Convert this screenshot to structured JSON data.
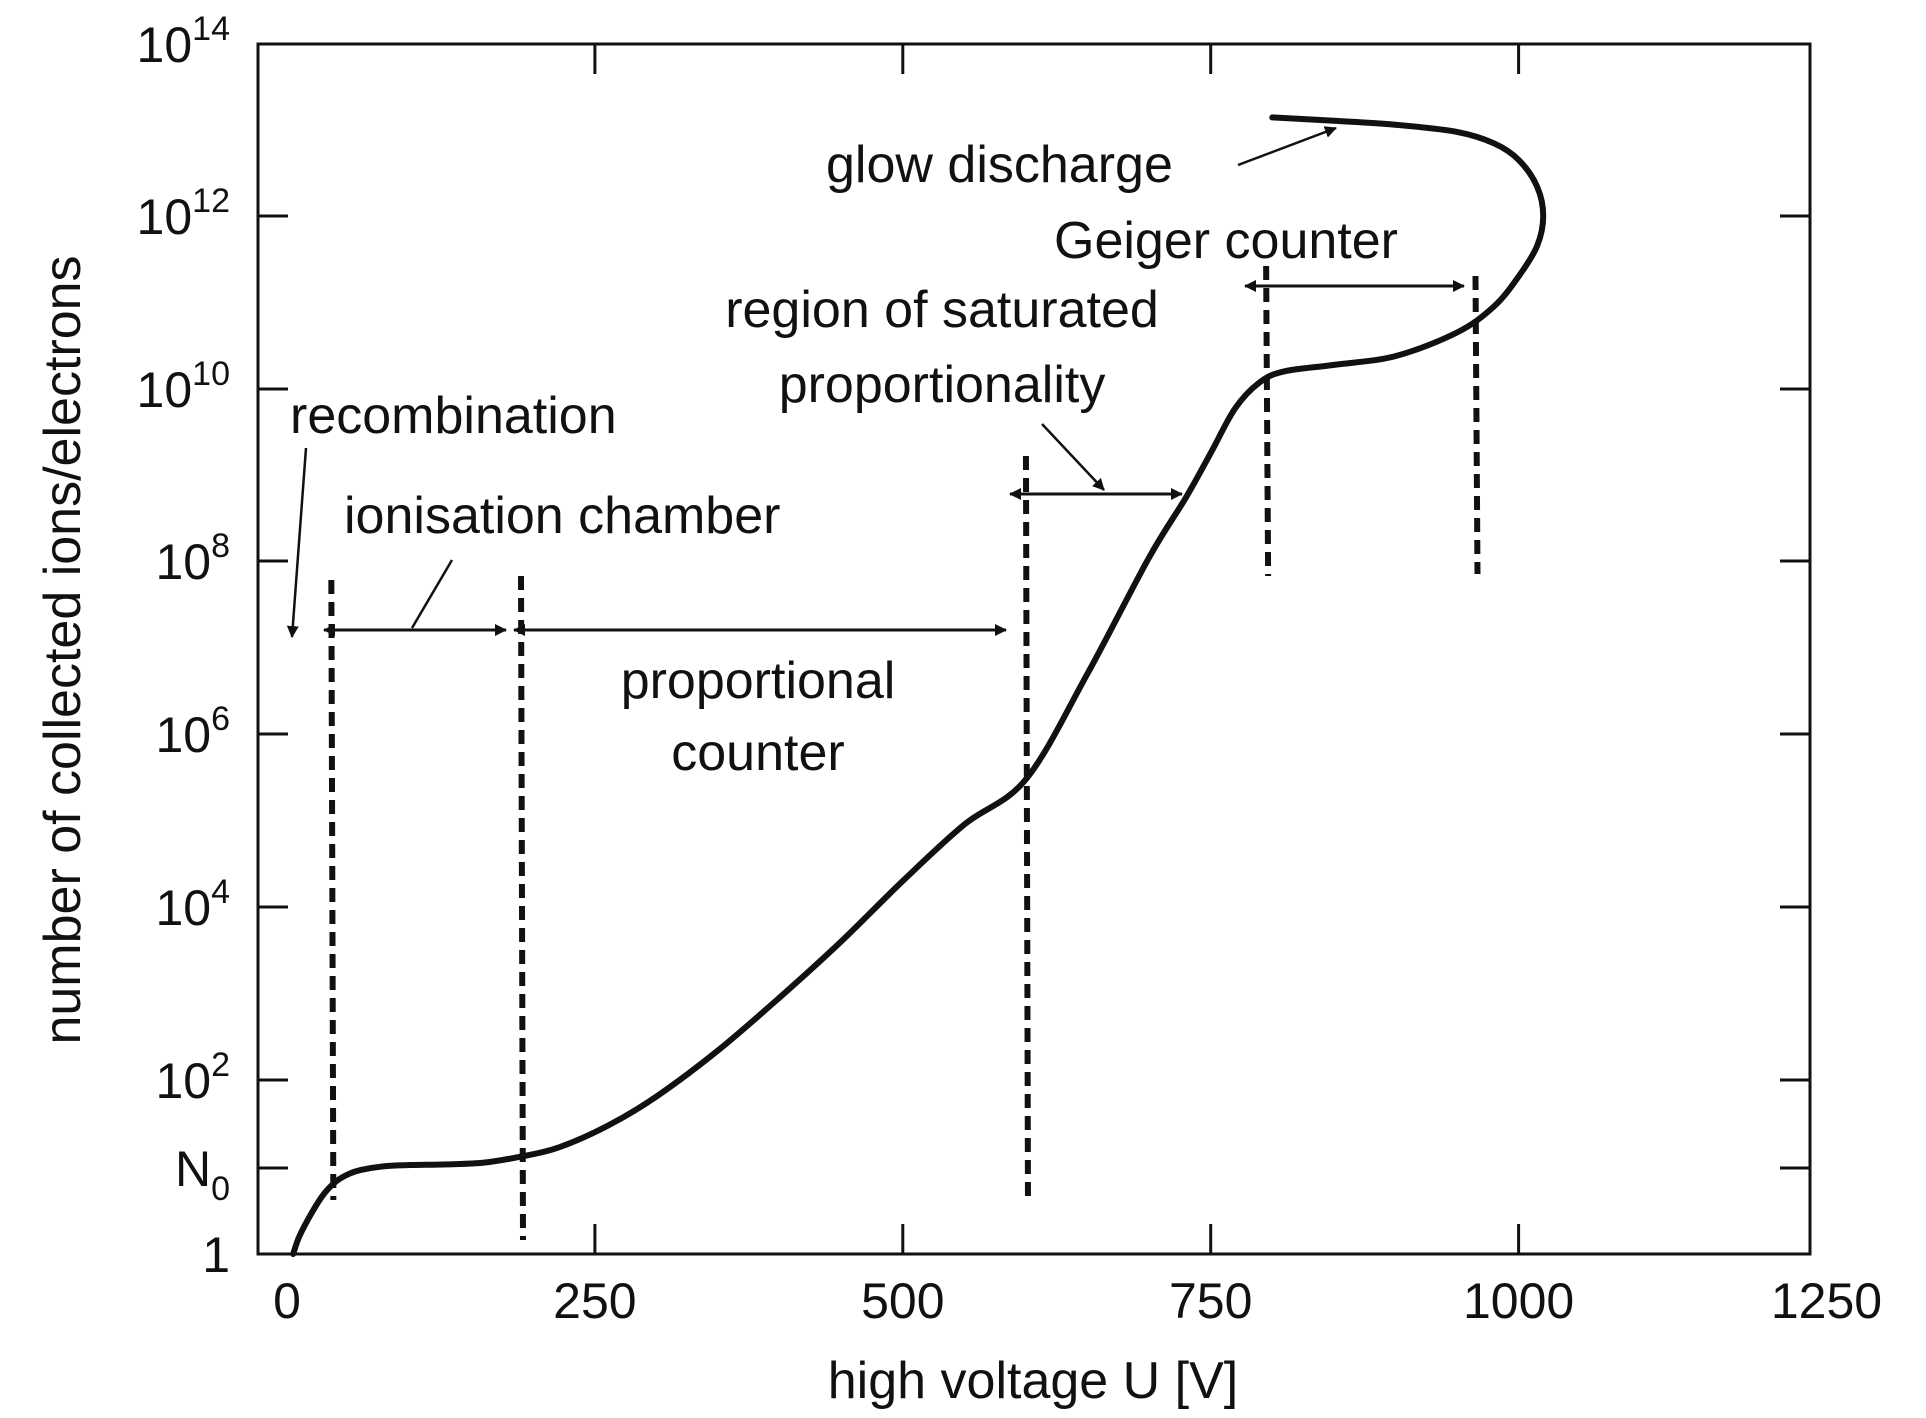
{
  "chart_data": {
    "type": "line",
    "xlabel": "high voltage U [V]",
    "ylabel": "number of collected ions/electrons",
    "xlim": [
      0,
      1250
    ],
    "ylim": [
      1,
      100000000000000
    ],
    "yscale": "log",
    "grid": false,
    "x_ticks": [
      "0",
      "250",
      "500",
      "750",
      "1000",
      "1250"
    ],
    "y_ticks": [
      {
        "base": "1",
        "exp": ""
      },
      {
        "base": "N",
        "sub": "0"
      },
      {
        "base": "10",
        "exp": "2"
      },
      {
        "base": "10",
        "exp": "4"
      },
      {
        "base": "10",
        "exp": "6"
      },
      {
        "base": "10",
        "exp": "8"
      },
      {
        "base": "10",
        "exp": "10"
      },
      {
        "base": "10",
        "exp": "12"
      },
      {
        "base": "10",
        "exp": "14"
      }
    ],
    "series": [
      {
        "x": [
          5,
          10,
          20,
          30,
          40,
          50,
          60,
          80,
          100,
          130,
          160,
          190,
          220,
          260,
          300,
          350,
          400,
          450,
          500,
          550,
          600,
          650,
          700,
          730,
          750,
          770,
          790,
          810,
          850,
          900,
          950,
          980,
          1000,
          1015,
          1020,
          1015,
          1000,
          980,
          950,
          900,
          850,
          800
        ],
        "y": [
          1,
          1.6,
          3,
          5,
          7,
          8.5,
          9.5,
          10.5,
          10.8,
          11,
          11.5,
          13.5,
          17,
          30,
          65,
          220,
          900,
          4000,
          20000,
          90000,
          300000,
          5000000,
          110000000,
          550000000,
          1800000000,
          6000000000,
          12000000000,
          16000000000,
          19000000000,
          24000000000,
          45000000000,
          90000000000,
          200000000000,
          450000000000,
          1000000000000,
          2200000000000,
          4500000000000,
          7000000000000,
          9500000000000,
          11500000000000,
          12800000000000,
          14000000000000
        ]
      }
    ],
    "boundaries": [
      36,
      190,
      600,
      795,
      965
    ],
    "annotations": [
      {
        "text": "recombination"
      },
      {
        "text": "ionisation chamber"
      },
      {
        "text": "proportional",
        "line2": "counter"
      },
      {
        "text": "region of saturated",
        "line2": "proportionality"
      },
      {
        "text": "Geiger counter"
      },
      {
        "text": "glow discharge"
      }
    ]
  }
}
